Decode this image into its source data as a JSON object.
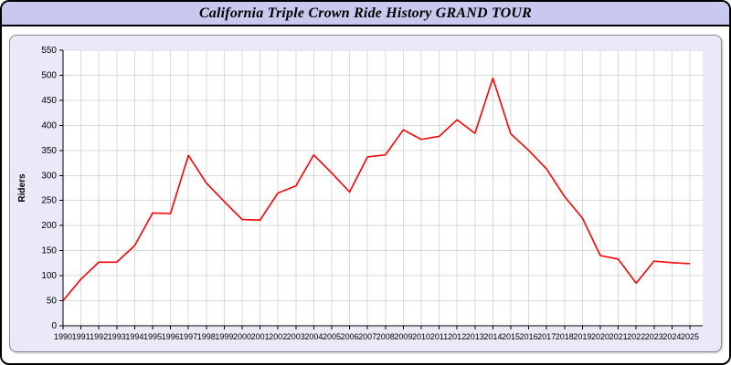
{
  "header": {
    "title": "California Triple Crown Ride History GRAND TOUR"
  },
  "colors": {
    "title_bar_bg": "#c9c9ef",
    "panel_bg": "#e9e9f7",
    "plot_bg": "#ffffff",
    "grid": "#d9d9d9",
    "axis": "#000000",
    "series_line": "#ff0000"
  },
  "chart_data": {
    "type": "line",
    "title": "California Triple Crown Ride History GRAND TOUR",
    "xlabel": "",
    "ylabel": "Riders",
    "ylim": [
      0,
      550
    ],
    "ytick_step": 50,
    "grid": true,
    "legend_position": "none",
    "x": [
      1990,
      1991,
      1992,
      1993,
      1994,
      1995,
      1996,
      1997,
      1998,
      1999,
      2000,
      2001,
      2002,
      2003,
      2004,
      2005,
      2006,
      2007,
      2008,
      2009,
      2010,
      2011,
      2012,
      2013,
      2014,
      2015,
      2016,
      2017,
      2018,
      2019,
      2020,
      2021,
      2022,
      2023,
      2024,
      2025
    ],
    "series": [
      {
        "name": "Riders",
        "color": "#ff0000",
        "values": [
          50,
          93,
          127,
          127,
          160,
          225,
          224,
          340,
          285,
          248,
          212,
          211,
          265,
          279,
          341,
          305,
          267,
          337,
          341,
          391,
          372,
          378,
          411,
          384,
          494,
          383,
          350,
          313,
          258,
          215,
          140,
          133,
          85,
          129,
          126,
          124
        ]
      }
    ]
  }
}
